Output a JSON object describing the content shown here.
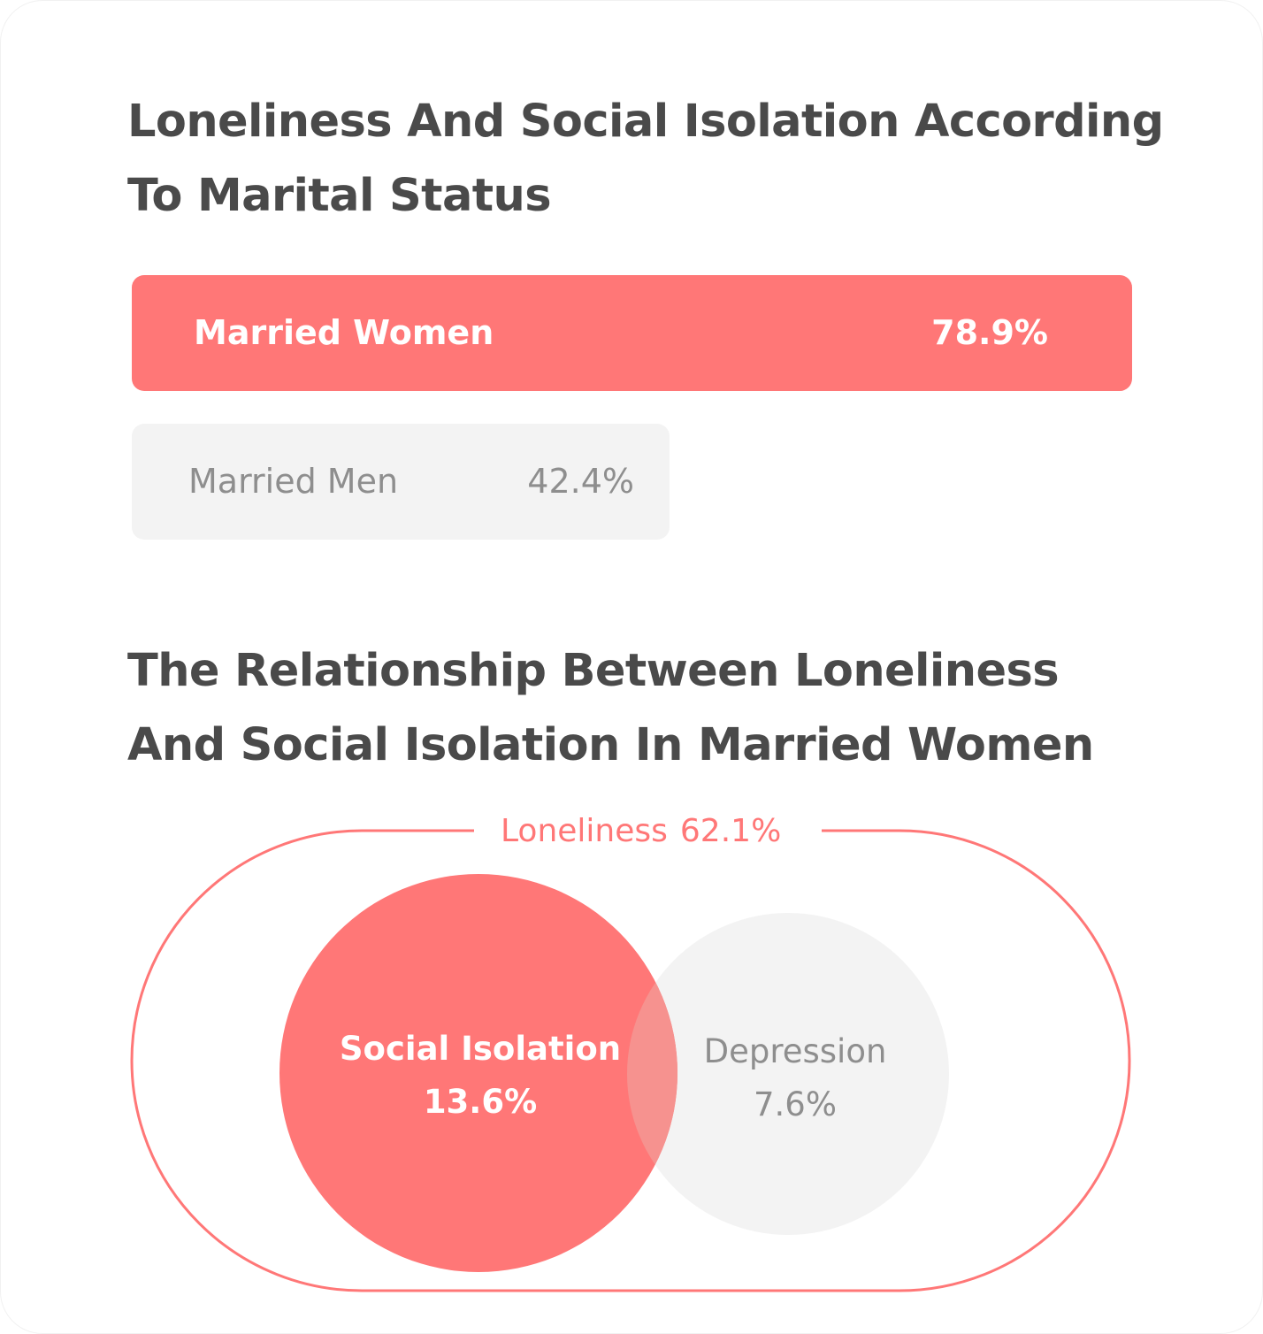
{
  "colors": {
    "accent": "#ff7777",
    "muted_fill": "#f3f3f3",
    "muted_text": "#8e8e8e",
    "heading_text": "#4a4a4a",
    "overlap": "#f6928f"
  },
  "chart_data": [
    {
      "type": "bar",
      "orientation": "horizontal",
      "title": "Loneliness And Social Isolation According To Marital Status",
      "categories": [
        "Married Women",
        "Married Men"
      ],
      "values": [
        78.9,
        42.4
      ],
      "value_labels": [
        "78.9%",
        "42.4%"
      ],
      "unit": "%",
      "highlight": "Married Women",
      "grid": false
    },
    {
      "type": "venn",
      "title": "The Relationship Between Loneliness And Social Isolation In Married Women",
      "sets": [
        {
          "name": "Loneliness",
          "value": 62.1,
          "label": "62.1%",
          "role": "enclosing"
        },
        {
          "name": "Social Isolation",
          "value": 13.6,
          "label": "13.6%",
          "role": "circle"
        },
        {
          "name": "Depression",
          "value": 7.6,
          "label": "7.6%",
          "role": "circle"
        }
      ],
      "overlaps": [
        [
          "Social Isolation",
          "Depression"
        ]
      ]
    }
  ]
}
